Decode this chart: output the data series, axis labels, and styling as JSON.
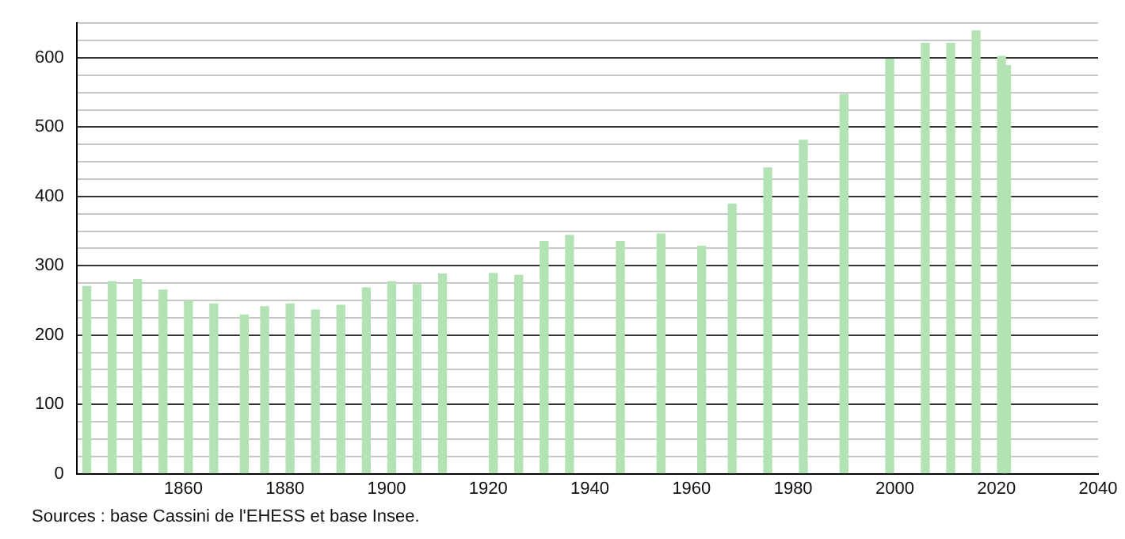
{
  "chart_data": {
    "type": "bar",
    "x": [
      1841,
      1846,
      1851,
      1856,
      1861,
      1866,
      1872,
      1876,
      1881,
      1886,
      1891,
      1896,
      1901,
      1906,
      1911,
      1921,
      1926,
      1931,
      1936,
      1946,
      1954,
      1962,
      1968,
      1975,
      1982,
      1990,
      1999,
      2006,
      2011,
      2016,
      2021,
      2022
    ],
    "values": [
      270,
      277,
      280,
      265,
      249,
      245,
      229,
      241,
      245,
      236,
      243,
      268,
      277,
      273,
      288,
      289,
      286,
      335,
      344,
      335,
      346,
      328,
      389,
      441,
      481,
      547,
      598,
      621,
      621,
      639,
      602,
      589
    ],
    "color": "#b3e3b5",
    "xlim": [
      1839,
      2040
    ],
    "xticks": [
      1860,
      1880,
      1900,
      1920,
      1940,
      1960,
      1980,
      2000,
      2020,
      2040
    ],
    "ylim": [
      0,
      650
    ],
    "yticks": [
      0,
      {
        "value": 25,
        "label": null
      },
      {
        "value": 50,
        "label": null
      },
      {
        "value": 75,
        "label": null
      },
      100,
      {
        "value": 125,
        "label": null
      },
      {
        "value": 150,
        "label": null
      },
      {
        "value": 175,
        "label": null
      },
      200,
      {
        "value": 225,
        "label": null
      },
      {
        "value": 250,
        "label": null
      },
      {
        "value": 275,
        "label": null
      },
      300,
      {
        "value": 325,
        "label": null
      },
      {
        "value": 350,
        "label": null
      },
      {
        "value": 375,
        "label": null
      },
      400,
      {
        "value": 425,
        "label": null
      },
      {
        "value": 450,
        "label": null
      },
      {
        "value": 475,
        "label": null
      },
      500,
      {
        "value": 525,
        "label": null
      },
      {
        "value": 550,
        "label": null
      },
      {
        "value": 575,
        "label": null
      },
      600,
      {
        "value": 625,
        "label": null
      },
      {
        "value": 650,
        "label": null
      }
    ],
    "grid": "y",
    "annotations": [
      "Sources : base Cassini de l'EHESS et base Insee."
    ]
  }
}
